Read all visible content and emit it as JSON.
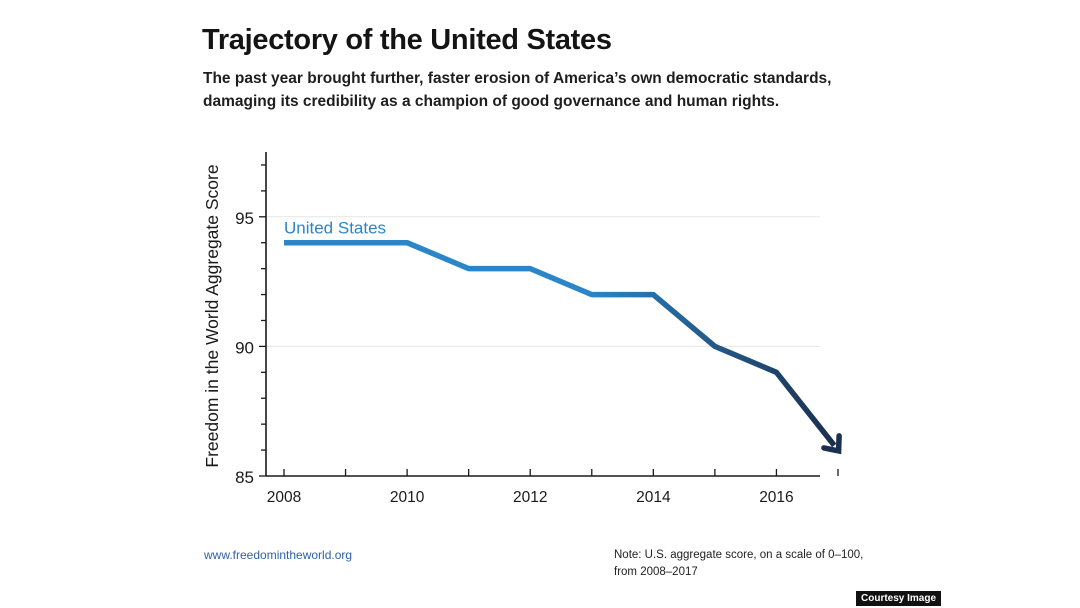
{
  "header": {
    "title": "Trajectory of the United States",
    "subtitle": "The past year brought further, faster erosion of America’s own democratic standards, damaging its credibility as a champion of good governance and human rights."
  },
  "footer": {
    "url": "www.freedomintheworld.org",
    "note": "Note: U.S. aggregate score, on a scale of 0–100, from 2008–2017",
    "badge": "Courtesy Image"
  },
  "colors": {
    "line_start": "#2a86c8",
    "line_end": "#1b2f4e",
    "label": "#2a86c8",
    "axis": "#1a1a1a",
    "grid": "#e6e6e6"
  },
  "chart_data": {
    "type": "line",
    "title": "Trajectory of the United States",
    "xlabel": "",
    "ylabel": "Freedom in the World Aggregate Score",
    "xlim": [
      2008,
      2017
    ],
    "ylim": [
      85,
      97.5
    ],
    "x_ticks": [
      2008,
      2010,
      2012,
      2014,
      2016
    ],
    "x_tick_labels": [
      "2008",
      "2010",
      "2012",
      "2014",
      "2016"
    ],
    "y_ticks": [
      85,
      90,
      95
    ],
    "y_tick_labels": [
      "85",
      "90",
      "95"
    ],
    "grid": true,
    "series": [
      {
        "name": "United States",
        "x": [
          2008,
          2009,
          2010,
          2011,
          2012,
          2013,
          2014,
          2015,
          2016,
          2017
        ],
        "values": [
          94,
          94,
          94,
          93,
          93,
          92,
          92,
          90,
          89,
          86
        ],
        "end_marker": "arrow"
      }
    ]
  }
}
